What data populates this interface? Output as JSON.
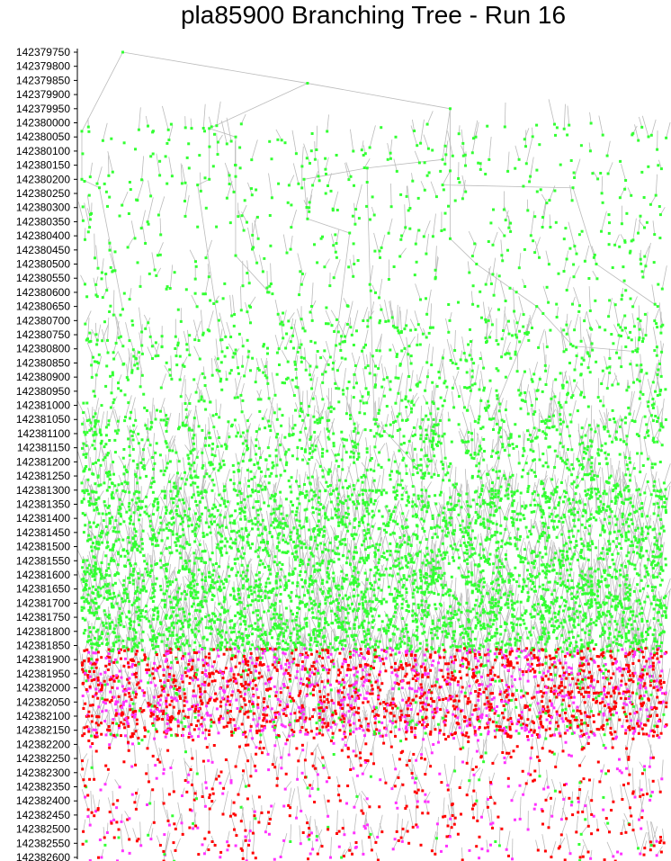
{
  "chart_data": {
    "type": "scatter",
    "title": "pla85900 Branching Tree - Run 16",
    "xlabel": "",
    "ylabel": "",
    "y_inverted": true,
    "ylim": [
      142379750,
      142382600
    ],
    "y_ticks": [
      142379750,
      142379800,
      142379850,
      142379900,
      142379950,
      142380000,
      142380050,
      142380100,
      142380150,
      142380200,
      142380250,
      142380300,
      142380350,
      142380400,
      142380450,
      142380500,
      142380550,
      142380600,
      142380650,
      142380700,
      142380750,
      142380800,
      142380850,
      142380900,
      142380950,
      142381000,
      142381050,
      142381100,
      142381150,
      142381200,
      142381250,
      142381300,
      142381350,
      142381400,
      142381450,
      142381500,
      142381550,
      142381600,
      142381650,
      142381700,
      142381750,
      142381800,
      142381850,
      142381900,
      142381950,
      142382000,
      142382050,
      142382100,
      142382150,
      142382200,
      142382250,
      142382300,
      142382350,
      142382400,
      142382450,
      142382500,
      142382550,
      142382600
    ],
    "node_colors": {
      "branched": "#33ff33",
      "pruned": "#ff0000",
      "infeasible": "#ff33ff",
      "edge": "#bbbbbb"
    },
    "root": {
      "x": 0.07,
      "y": 142379750
    },
    "skeleton_nodes": [
      {
        "id": 0,
        "x": 0.07,
        "y": 142379750
      },
      {
        "id": 1,
        "x": 0.386,
        "y": 142379860
      },
      {
        "id": 2,
        "x": 0.0,
        "y": 142380030
      },
      {
        "id": 3,
        "x": 0.63,
        "y": 142379950
      },
      {
        "id": 4,
        "x": 0.218,
        "y": 142380020
      },
      {
        "id": 5,
        "x": 0.263,
        "y": 142380050
      },
      {
        "id": 6,
        "x": 0.0,
        "y": 142380200
      },
      {
        "id": 7,
        "x": 0.617,
        "y": 142380130
      },
      {
        "id": 8,
        "x": 0.63,
        "y": 142380170
      },
      {
        "id": 9,
        "x": 0.488,
        "y": 142380160
      },
      {
        "id": 10,
        "x": 0.198,
        "y": 142380220
      },
      {
        "id": 11,
        "x": 0.263,
        "y": 142380150
      },
      {
        "id": 12,
        "x": 0.218,
        "y": 142380200
      },
      {
        "id": 13,
        "x": 0.263,
        "y": 142380190
      },
      {
        "id": 14,
        "x": 0.38,
        "y": 142380200
      },
      {
        "id": 15,
        "x": 0.488,
        "y": 142380210
      },
      {
        "id": 16,
        "x": 0.617,
        "y": 142380220
      },
      {
        "id": 17,
        "x": 0.84,
        "y": 142380230
      },
      {
        "id": 18,
        "x": 0.03,
        "y": 142380230
      },
      {
        "id": 19,
        "x": 0.386,
        "y": 142380340
      },
      {
        "id": 20,
        "x": 0.458,
        "y": 142380390
      },
      {
        "id": 21,
        "x": 0.63,
        "y": 142380410
      },
      {
        "id": 22,
        "x": 0.263,
        "y": 142380470
      },
      {
        "id": 23,
        "x": 0.675,
        "y": 142380500
      },
      {
        "id": 24,
        "x": 0.88,
        "y": 142380500
      },
      {
        "id": 25,
        "x": 0.985,
        "y": 142380650
      },
      {
        "id": 26,
        "x": 0.778,
        "y": 142380650
      },
      {
        "id": 27,
        "x": 0.32,
        "y": 142380600
      },
      {
        "id": 28,
        "x": 0.07,
        "y": 142380660
      },
      {
        "id": 29,
        "x": 0.24,
        "y": 142380810
      },
      {
        "id": 30,
        "x": 0.84,
        "y": 142380790
      },
      {
        "id": 31,
        "x": 0.95,
        "y": 142380810
      },
      {
        "id": 32,
        "x": 0.43,
        "y": 142380850
      },
      {
        "id": 33,
        "x": 0.5,
        "y": 142381050
      },
      {
        "id": 34,
        "x": 0.7,
        "y": 142381050
      },
      {
        "id": 35,
        "x": 0.58,
        "y": 142381230
      }
    ],
    "skeleton_edges": [
      [
        0,
        1
      ],
      [
        0,
        2
      ],
      [
        1,
        3
      ],
      [
        1,
        4
      ],
      [
        4,
        5
      ],
      [
        2,
        6
      ],
      [
        3,
        7
      ],
      [
        3,
        8
      ],
      [
        7,
        9
      ],
      [
        4,
        12
      ],
      [
        5,
        11
      ],
      [
        11,
        13
      ],
      [
        12,
        10
      ],
      [
        9,
        14
      ],
      [
        9,
        15
      ],
      [
        8,
        16
      ],
      [
        16,
        17
      ],
      [
        6,
        18
      ],
      [
        14,
        19
      ],
      [
        19,
        20
      ],
      [
        8,
        21
      ],
      [
        13,
        22
      ],
      [
        21,
        23
      ],
      [
        17,
        24
      ],
      [
        24,
        25
      ],
      [
        23,
        26
      ],
      [
        22,
        27
      ],
      [
        18,
        28
      ],
      [
        10,
        29
      ],
      [
        26,
        30
      ],
      [
        30,
        31
      ],
      [
        20,
        32
      ],
      [
        15,
        33
      ],
      [
        26,
        34
      ],
      [
        33,
        35
      ]
    ],
    "bands": [
      {
        "from": 142380000,
        "to": 142380700,
        "color": "branched",
        "density": 0.1
      },
      {
        "from": 142380700,
        "to": 142381050,
        "color": "branched",
        "density": 0.25
      },
      {
        "from": 142381050,
        "to": 142381300,
        "color": "branched",
        "density": 0.45
      },
      {
        "from": 142381300,
        "to": 142381600,
        "color": "branched",
        "density": 0.8
      },
      {
        "from": 142381600,
        "to": 142381860,
        "color": "branched",
        "density": 1.0
      },
      {
        "from": 142381860,
        "to": 142382170,
        "color": "mixed",
        "density": 1.0
      },
      {
        "from": 142382170,
        "to": 142382600,
        "color": "mixed",
        "density": 0.2
      }
    ]
  }
}
